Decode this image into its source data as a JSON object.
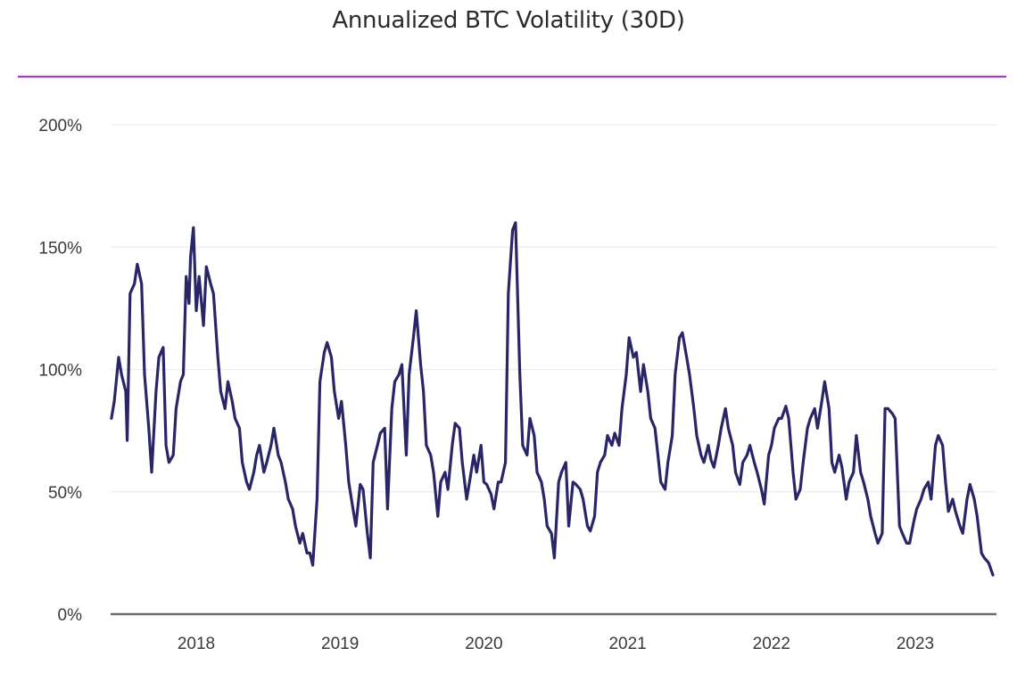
{
  "chart_data": {
    "type": "line",
    "title": "Annualized BTC Volatility (30D)",
    "xlabel": "",
    "ylabel": "",
    "ylim": [
      0,
      200
    ],
    "yticks": [
      0,
      50,
      100,
      150,
      200
    ],
    "ytick_labels": [
      "0%",
      "50%",
      "100%",
      "150%",
      "200%"
    ],
    "xlim": [
      2017.41,
      2023.54
    ],
    "xticks": [
      2018,
      2019,
      2020,
      2021,
      2022,
      2023
    ],
    "xtick_labels": [
      "2018",
      "2019",
      "2020",
      "2021",
      "2022",
      "2023"
    ],
    "grid": "horizontal",
    "legend": "none",
    "series": [
      {
        "name": "Annualized BTC Volatility (30D)",
        "color": "#2a2566",
        "x": [
          2017.41,
          2017.43,
          2017.46,
          2017.48,
          2017.51,
          2017.52,
          2017.54,
          2017.57,
          2017.59,
          2017.62,
          2017.64,
          2017.67,
          2017.69,
          2017.72,
          2017.74,
          2017.77,
          2017.79,
          2017.81,
          2017.84,
          2017.86,
          2017.89,
          2017.91,
          2017.93,
          2017.95,
          2017.96,
          2017.98,
          2018.0,
          2018.02,
          2018.05,
          2018.07,
          2018.1,
          2018.12,
          2018.15,
          2018.17,
          2018.2,
          2018.22,
          2018.25,
          2018.27,
          2018.3,
          2018.32,
          2018.35,
          2018.37,
          2018.4,
          2018.42,
          2018.44,
          2018.47,
          2018.49,
          2018.52,
          2018.54,
          2018.57,
          2018.59,
          2018.62,
          2018.64,
          2018.67,
          2018.69,
          2018.72,
          2018.74,
          2018.77,
          2018.79,
          2018.81,
          2018.84,
          2018.86,
          2018.89,
          2018.91,
          2018.94,
          2018.96,
          2018.99,
          2019.01,
          2019.04,
          2019.06,
          2019.09,
          2019.11,
          2019.14,
          2019.16,
          2019.19,
          2019.21,
          2019.23,
          2019.26,
          2019.28,
          2019.31,
          2019.33,
          2019.36,
          2019.38,
          2019.41,
          2019.43,
          2019.46,
          2019.48,
          2019.51,
          2019.53,
          2019.56,
          2019.58,
          2019.6,
          2019.63,
          2019.65,
          2019.68,
          2019.7,
          2019.73,
          2019.75,
          2019.78,
          2019.8,
          2019.83,
          2019.85,
          2019.88,
          2019.9,
          2019.93,
          2019.95,
          2019.98,
          2020.0,
          2020.02,
          2020.05,
          2020.07,
          2020.1,
          2020.12,
          2020.15,
          2020.17,
          2020.2,
          2020.22,
          2020.25,
          2020.27,
          2020.3,
          2020.32,
          2020.35,
          2020.37,
          2020.4,
          2020.42,
          2020.44,
          2020.47,
          2020.49,
          2020.52,
          2020.54,
          2020.57,
          2020.59,
          2020.62,
          2020.64,
          2020.67,
          2020.69,
          2020.72,
          2020.74,
          2020.77,
          2020.79,
          2020.81,
          2020.84,
          2020.86,
          2020.89,
          2020.91,
          2020.94,
          2020.96,
          2020.99,
          2021.01,
          2021.04,
          2021.06,
          2021.09,
          2021.11,
          2021.14,
          2021.16,
          2021.19,
          2021.21,
          2021.23,
          2021.26,
          2021.28,
          2021.31,
          2021.33,
          2021.36,
          2021.38,
          2021.41,
          2021.43,
          2021.46,
          2021.48,
          2021.51,
          2021.53,
          2021.56,
          2021.58,
          2021.6,
          2021.63,
          2021.65,
          2021.68,
          2021.7,
          2021.73,
          2021.75,
          2021.78,
          2021.8,
          2021.83,
          2021.85,
          2021.88,
          2021.9,
          2021.93,
          2021.95,
          2021.98,
          2022.0,
          2022.02,
          2022.05,
          2022.07,
          2022.1,
          2022.12,
          2022.15,
          2022.17,
          2022.2,
          2022.22,
          2022.25,
          2022.27,
          2022.3,
          2022.32,
          2022.35,
          2022.37,
          2022.4,
          2022.42,
          2022.44,
          2022.47,
          2022.49,
          2022.52,
          2022.54,
          2022.57,
          2022.59,
          2022.62,
          2022.64,
          2022.67,
          2022.69,
          2022.72,
          2022.74,
          2022.77,
          2022.79,
          2022.81,
          2022.84,
          2022.86,
          2022.89,
          2022.91,
          2022.94,
          2022.96,
          2022.99,
          2023.01,
          2023.04,
          2023.06,
          2023.09,
          2023.11,
          2023.14,
          2023.16,
          2023.19,
          2023.21,
          2023.23,
          2023.26,
          2023.28,
          2023.31,
          2023.33,
          2023.36,
          2023.38,
          2023.41,
          2023.43,
          2023.46,
          2023.48,
          2023.51,
          2023.54
        ],
        "values": [
          80,
          87,
          105,
          98,
          91,
          71,
          131,
          135,
          143,
          135,
          98,
          76,
          58,
          91,
          105,
          109,
          69,
          62,
          65,
          84,
          95,
          98,
          138,
          127,
          146,
          158,
          124,
          138,
          118,
          142,
          135,
          131,
          105,
          91,
          84,
          95,
          87,
          80,
          76,
          62,
          54,
          51,
          58,
          65,
          69,
          58,
          62,
          69,
          76,
          65,
          62,
          54,
          47,
          43,
          36,
          29,
          33,
          25,
          25,
          20,
          47,
          95,
          107,
          111,
          105,
          91,
          80,
          87,
          69,
          54,
          43,
          36,
          53,
          51,
          33,
          23,
          62,
          69,
          74,
          76,
          43,
          84,
          95,
          98,
          102,
          65,
          98,
          113,
          124,
          102,
          91,
          69,
          65,
          58,
          40,
          54,
          58,
          51,
          69,
          78,
          76,
          62,
          47,
          54,
          65,
          58,
          69,
          54,
          53,
          49,
          43,
          54,
          54,
          62,
          131,
          157,
          160,
          98,
          69,
          65,
          80,
          73,
          58,
          54,
          47,
          36,
          33,
          23,
          54,
          58,
          62,
          36,
          54,
          53,
          51,
          47,
          36,
          34,
          40,
          58,
          62,
          65,
          73,
          69,
          74,
          69,
          84,
          98,
          113,
          105,
          107,
          91,
          102,
          91,
          80,
          76,
          65,
          54,
          51,
          62,
          73,
          98,
          113,
          115,
          105,
          98,
          84,
          73,
          65,
          62,
          69,
          63,
          60,
          69,
          76,
          84,
          76,
          69,
          58,
          53,
          62,
          65,
          69,
          62,
          58,
          51,
          45,
          65,
          69,
          76,
          80,
          80,
          85,
          80,
          58,
          47,
          51,
          62,
          76,
          80,
          84,
          76,
          87,
          95,
          84,
          62,
          58,
          65,
          60,
          47,
          54,
          58,
          73,
          58,
          54,
          47,
          40,
          33,
          29,
          33,
          84,
          84,
          82,
          80,
          36,
          33,
          29,
          29,
          38,
          43,
          47,
          51,
          54,
          47,
          69,
          73,
          69,
          54,
          42,
          47,
          42,
          36,
          33,
          47,
          53,
          47,
          40,
          25,
          23,
          21,
          16
        ]
      }
    ]
  }
}
